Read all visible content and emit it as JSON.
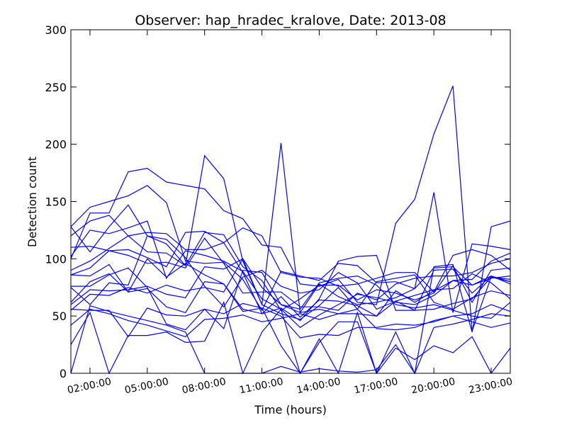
{
  "chart_data": {
    "type": "line",
    "title": "Observer: hap_hradec_kralove, Date: 2013-08",
    "xlabel": "Time (hours)",
    "ylabel": "Detection count",
    "xlim": [
      1,
      24
    ],
    "ylim": [
      0,
      300
    ],
    "x_ticks": [
      {
        "value": 2,
        "label": "02:00:00"
      },
      {
        "value": 5,
        "label": "05:00:00"
      },
      {
        "value": 8,
        "label": "08:00:00"
      },
      {
        "value": 11,
        "label": "11:00:00"
      },
      {
        "value": 14,
        "label": "14:00:00"
      },
      {
        "value": 17,
        "label": "17:00:00"
      },
      {
        "value": 20,
        "label": "20:00:00"
      },
      {
        "value": 23,
        "label": "23:00:00"
      }
    ],
    "y_ticks": [
      0,
      50,
      100,
      150,
      200,
      250,
      300
    ],
    "x": [
      1,
      2,
      3,
      4,
      5,
      6,
      7,
      8,
      9,
      10,
      11,
      12,
      13,
      14,
      15,
      16,
      17,
      18,
      19,
      20,
      21,
      22,
      23,
      24
    ],
    "line_color": "#0000ff",
    "grid": false,
    "series": [
      {
        "values": [
          128,
          145,
          150,
          155,
          164,
          149,
          98,
          96,
          97,
          82,
          55,
          89,
          85,
          81,
          96,
          94,
          79,
          80,
          74,
          92,
          93,
          77,
          85,
          80
        ]
      },
      {
        "values": [
          100,
          140,
          140,
          176,
          179,
          167,
          164,
          161,
          142,
          135,
          112,
          110,
          78,
          76,
          82,
          62,
          60,
          131,
          152,
          209,
          251,
          37,
          84,
          82
        ]
      },
      {
        "values": [
          128,
          106,
          128,
          147,
          120,
          113,
          94,
          190,
          170,
          98,
          60,
          201,
          53,
          78,
          67,
          60,
          62,
          66,
          74,
          158,
          53,
          113,
          111,
          108
        ]
      },
      {
        "values": [
          86,
          92,
          107,
          108,
          101,
          93,
          123,
          124,
          114,
          88,
          52,
          57,
          46,
          65,
          98,
          102,
          103,
          55,
          55,
          90,
          91,
          70,
          85,
          78
        ]
      },
      {
        "values": [
          62,
          80,
          87,
          71,
          100,
          84,
          96,
          86,
          78,
          56,
          52,
          67,
          49,
          64,
          63,
          59,
          50,
          72,
          62,
          72,
          81,
          77,
          83,
          85
        ]
      },
      {
        "values": [
          75,
          60,
          79,
          77,
          120,
          117,
          101,
          76,
          58,
          84,
          90,
          76,
          70,
          73,
          88,
          79,
          56,
          63,
          55,
          56,
          61,
          65,
          84,
          80
        ]
      },
      {
        "values": [
          55,
          69,
          68,
          75,
          70,
          77,
          72,
          75,
          71,
          100,
          60,
          52,
          47,
          59,
          75,
          56,
          80,
          83,
          86,
          62,
          56,
          66,
          72,
          68
        ]
      },
      {
        "values": [
          56,
          55,
          55,
          32,
          57,
          51,
          50,
          56,
          39,
          90,
          88,
          60,
          53,
          56,
          52,
          52,
          50,
          63,
          68,
          73,
          74,
          87,
          79,
          65
        ]
      },
      {
        "values": [
          42,
          56,
          52,
          46,
          42,
          37,
          32,
          47,
          48,
          51,
          45,
          48,
          52,
          47,
          52,
          56,
          39,
          38,
          40,
          46,
          50,
          52,
          60,
          54
        ]
      },
      {
        "values": [
          25,
          53,
          0,
          33,
          33,
          36,
          27,
          28,
          62,
          0,
          36,
          56,
          0,
          27,
          45,
          45,
          0,
          22,
          12,
          24,
          18,
          32,
          0,
          22
        ]
      },
      {
        "values": [
          0,
          59,
          54,
          50,
          46,
          42,
          36,
          0,
          0,
          0,
          0,
          6,
          1,
          4,
          2,
          1,
          3,
          25,
          0,
          93,
          95,
          36,
          128,
          133
        ]
      },
      {
        "values": [
          86,
          85,
          95,
          71,
          74,
          58,
          53,
          80,
          78,
          54,
          57,
          24,
          0,
          30,
          0,
          53,
          0,
          36,
          0,
          40,
          43,
          47,
          52,
          50
        ]
      },
      {
        "values": [
          76,
          76,
          86,
          92,
          75,
          43,
          38,
          56,
          52,
          61,
          57,
          50,
          31,
          34,
          33,
          40,
          40,
          43,
          42,
          45,
          50,
          45,
          40,
          44
        ]
      },
      {
        "values": [
          110,
          111,
          107,
          103,
          96,
          97,
          92,
          118,
          96,
          70,
          71,
          71,
          58,
          58,
          55,
          70,
          64,
          78,
          83,
          85,
          85,
          88,
          96,
          100
        ]
      },
      {
        "values": [
          102,
          125,
          122,
          127,
          133,
          83,
          107,
          103,
          98,
          89,
          65,
          56,
          40,
          51,
          60,
          69,
          66,
          62,
          60,
          68,
          81,
          82,
          98,
          105
        ]
      },
      {
        "values": [
          120,
          133,
          138,
          120,
          106,
          105,
          94,
          123,
          121,
          93,
          81,
          55,
          65,
          77,
          77,
          64,
          73,
          70,
          64,
          70,
          94,
          62,
          90,
          92
        ]
      },
      {
        "values": [
          90,
          98,
          109,
          120,
          123,
          122,
          108,
          108,
          114,
          127,
          120,
          88,
          84,
          83,
          76,
          78,
          83,
          88,
          88,
          71,
          103,
          108,
          103,
          90
        ]
      },
      {
        "values": [
          60,
          73,
          72,
          73,
          76,
          69,
          66,
          93,
          91,
          100,
          75,
          60,
          56,
          79,
          83,
          85,
          77,
          60,
          57,
          60,
          55,
          50,
          48,
          62
        ]
      }
    ]
  }
}
